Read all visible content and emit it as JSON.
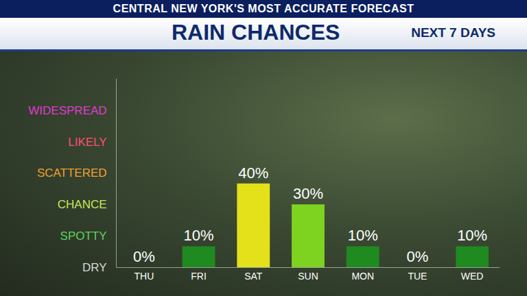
{
  "chart_data": {
    "type": "bar",
    "title": "RAIN CHANCES",
    "subtitle": "CENTRAL NEW YORK'S MOST ACCURATE FORECAST",
    "annotations": [
      "NEXT 7 DAYS"
    ],
    "categories": [
      "THU",
      "FRI",
      "SAT",
      "SUN",
      "MON",
      "TUE",
      "WED"
    ],
    "values": [
      0,
      10,
      40,
      30,
      10,
      0,
      10
    ],
    "value_labels": [
      "0%",
      "10%",
      "40%",
      "30%",
      "10%",
      "0%",
      "10%"
    ],
    "colors": [
      "#e6e6e6",
      "#1f8a1f",
      "#e4e01a",
      "#7ed321",
      "#1f8a1f",
      "#e6e6e6",
      "#1f8a1f"
    ],
    "ylim": [
      0,
      90
    ],
    "yticks": [
      {
        "value": 0,
        "label": "DRY"
      },
      {
        "value": 15,
        "label": "SPOTTY"
      },
      {
        "value": 30,
        "label": "CHANCE"
      },
      {
        "value": 45,
        "label": "SCATTERED"
      },
      {
        "value": 60,
        "label": "LIKELY"
      },
      {
        "value": 75,
        "label": "WIDESPREAD"
      }
    ],
    "grid": false,
    "data_labels": true
  }
}
